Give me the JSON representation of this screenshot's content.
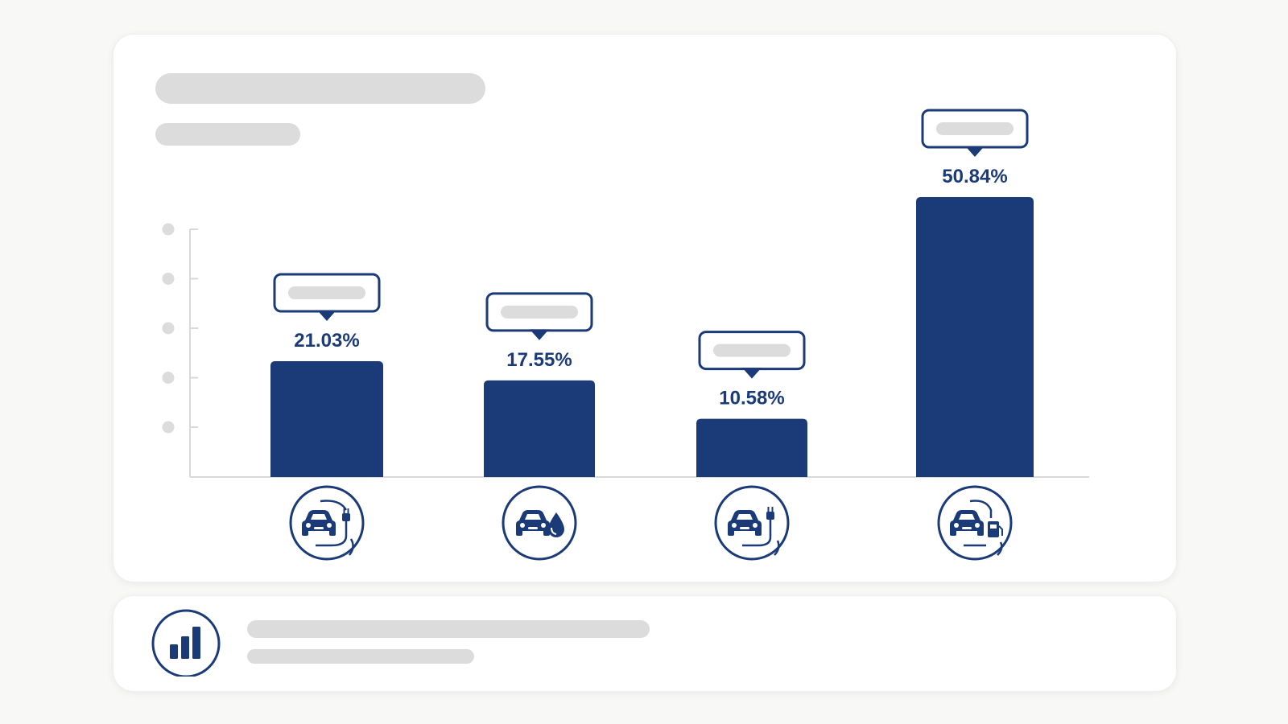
{
  "colors": {
    "bar": "#1b3a78",
    "axis": "#d9d9d9",
    "placeholder": "#dcdcdc",
    "card": "#ffffff",
    "background": "#f8f8f7"
  },
  "chart_data": {
    "type": "bar",
    "title": "",
    "xlabel": "",
    "ylabel": "",
    "ylim": [
      0,
      60
    ],
    "grid": false,
    "categories": [
      {
        "icon": "plug-in-hybrid-car-icon",
        "label": "",
        "value": 21.03,
        "value_label": "21.03%"
      },
      {
        "icon": "hybrid-car-icon",
        "label": "",
        "value": 17.55,
        "value_label": "17.55%"
      },
      {
        "icon": "electric-car-icon",
        "label": "",
        "value": 10.58,
        "value_label": "10.58%"
      },
      {
        "icon": "gasoline-car-icon",
        "label": "",
        "value": 50.84,
        "value_label": "50.84%"
      }
    ]
  },
  "summary": {
    "icon": "bar-chart-icon",
    "title": "",
    "subtitle": ""
  }
}
